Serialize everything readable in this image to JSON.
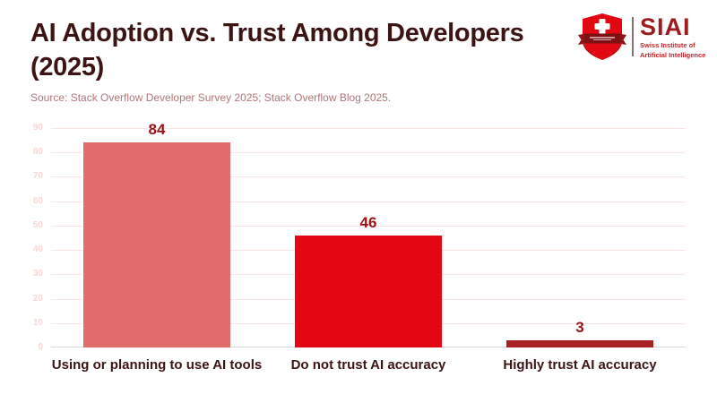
{
  "header": {
    "title_line1": "AI Adoption vs. Trust Among Developers",
    "title_line2": "(2025)",
    "source": "Source: Stack Overflow Developer Survey 2025; Stack Overflow Blog 2025."
  },
  "logo": {
    "shield_icon": "swiss-shield-icon",
    "acronym": "SIAI",
    "subtitle_line1": "Swiss Institute of",
    "subtitle_line2": "Artificial Intelligence",
    "accent_color": "#9e1b1e"
  },
  "chart_data": {
    "type": "bar",
    "title": "AI Adoption vs. Trust Among Developers (2025)",
    "categories": [
      "Using or planning to use AI tools",
      "Do not trust AI accuracy",
      "Highly trust AI accuracy"
    ],
    "values": [
      84,
      46,
      3
    ],
    "value_labels": [
      "84",
      "46",
      "3"
    ],
    "bar_colors": [
      "#e06c6c",
      "#e30613",
      "#a62024"
    ],
    "xlabel": "",
    "ylabel": "",
    "ylim": [
      0,
      90
    ],
    "ytick_step": 10,
    "yticks": [
      0,
      10,
      20,
      30,
      40,
      50,
      60,
      70,
      80,
      90
    ],
    "grid": true,
    "legend": false,
    "colors": {
      "value_label": "#9b1116",
      "category_label": "#3d1414",
      "tick_label": "#fbd6d6",
      "gridline": "#f9e6e2",
      "baseline": "#d8d8d8"
    }
  },
  "colors": {
    "title": "#3d1414",
    "source": "#b07678",
    "background": "#ffffff"
  }
}
